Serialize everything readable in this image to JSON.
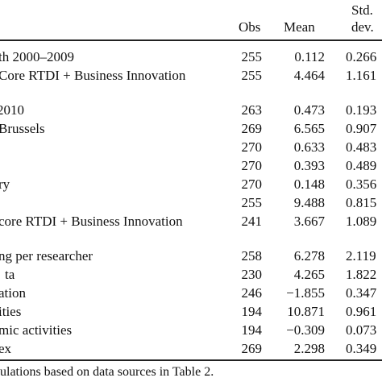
{
  "table": {
    "headers": {
      "obs": "Obs",
      "mean": "Mean",
      "std_line1": "Std.",
      "std_line2": "dev."
    },
    "rows": [
      {
        "label": "th 2000–2009",
        "obs": "255",
        "mean": "0.112",
        "sd": "0.266"
      },
      {
        "label": "Core RTDI + Business Innovation",
        "obs": "255",
        "mean": "4.464",
        "sd": "1.161"
      },
      {
        "label": "2010",
        "obs": "263",
        "mean": "0.473",
        "sd": "0.193"
      },
      {
        "label": "Brussels",
        "obs": "269",
        "mean": "6.565",
        "sd": "0.907"
      },
      {
        "label": "",
        "obs": "270",
        "mean": "0.633",
        "sd": "0.483"
      },
      {
        "label": "",
        "obs": "270",
        "mean": "0.393",
        "sd": "0.489"
      },
      {
        "label": "ry",
        "obs": "270",
        "mean": "0.148",
        "sd": "0.356"
      },
      {
        "label": "",
        "obs": "255",
        "mean": "9.488",
        "sd": "0.815"
      },
      {
        "label": "core RTDI + Business Innovation",
        "obs": "241",
        "mean": "3.667",
        "sd": "1.089"
      },
      {
        "label": "ng per researcher",
        "obs": "258",
        "mean": "6.278",
        "sd": "2.119"
      },
      {
        "label": "ta",
        "obs": "230",
        "mean": "4.265",
        "sd": "1.822"
      },
      {
        "label": "ation",
        "obs": "246",
        "mean": "−1.855",
        "sd": "0.347"
      },
      {
        "label": "ities",
        "obs": "194",
        "mean": "10.871",
        "sd": "0.961"
      },
      {
        "label": "mic activities",
        "obs": "194",
        "mean": "−0.309",
        "sd": "0.073"
      },
      {
        "label": "ex",
        "obs": "269",
        "mean": "2.298",
        "sd": "0.349"
      }
    ]
  },
  "footnote": "ulations based on data sources in Table 2."
}
